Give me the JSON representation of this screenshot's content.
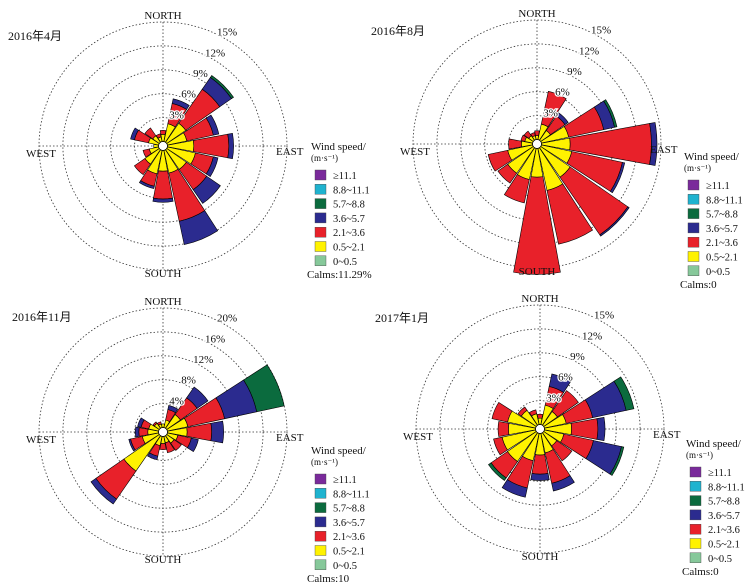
{
  "chart_data": [
    {
      "type": "windrose",
      "title": "2016年4月",
      "directions": [
        "N",
        "NNE",
        "NE",
        "ENE",
        "E",
        "ESE",
        "SE",
        "SSE",
        "S",
        "SSW",
        "SW",
        "WSW",
        "W",
        "WNW",
        "NW",
        "NNW"
      ],
      "compass_labels": {
        "north": "NORTH",
        "south": "SOUTH",
        "east": "EAST",
        "west": "WEST"
      },
      "rings": [
        3,
        6,
        9,
        12,
        15
      ],
      "ring_labels": [
        "3%",
        "6%",
        "9%",
        "12%",
        "15%"
      ],
      "max": 15,
      "legend_title": "Wind speed/",
      "legend_unit": "(m·s⁻¹)",
      "calms": "Calms:11.29%",
      "bins": [
        {
          "label": "≥11.1",
          "color": "#7a2a9b"
        },
        {
          "label": "8.8~11.1",
          "color": "#1fb3cf"
        },
        {
          "label": "5.7~8.8",
          "color": "#0b6b3e"
        },
        {
          "label": "3.6~5.7",
          "color": "#2b2b8f"
        },
        {
          "label": "2.1~3.6",
          "color": "#e8212a"
        },
        {
          "label": "0.5~2.1",
          "color": "#fff200"
        },
        {
          "label": "0~0.5",
          "color": "#86c89a"
        }
      ],
      "freq": [
        [
          0,
          0,
          0,
          0,
          0.5,
          0.9,
          0
        ],
        [
          0,
          0,
          0,
          0.6,
          2.6,
          2.3,
          0
        ],
        [
          0,
          0,
          0.3,
          1.8,
          5.2,
          2.9,
          0
        ],
        [
          0,
          0,
          0,
          0.7,
          3.4,
          2.5,
          0
        ],
        [
          0,
          0,
          0,
          0.6,
          4.4,
          3.3,
          0
        ],
        [
          0,
          0,
          0,
          0.6,
          2.3,
          3.6,
          0
        ],
        [
          0,
          0,
          0,
          2.1,
          3.1,
          3.0,
          0
        ],
        [
          0,
          0,
          0,
          3.0,
          6.2,
          2.9,
          0
        ],
        [
          0,
          0,
          0,
          0.4,
          3.5,
          2.6,
          0
        ],
        [
          0,
          0,
          0,
          0.3,
          1.6,
          3.0,
          0
        ],
        [
          0,
          0,
          0,
          0,
          1.6,
          2.2,
          0
        ],
        [
          0,
          0,
          0,
          0,
          0.8,
          1.2,
          0
        ],
        [
          0,
          0,
          0,
          0,
          0,
          0.6,
          0
        ],
        [
          0,
          0,
          0,
          0.5,
          1.8,
          1.3,
          0
        ],
        [
          0,
          0,
          0,
          0,
          1.2,
          1.0,
          0
        ],
        [
          0,
          0,
          0,
          0,
          0.4,
          0.6,
          0
        ]
      ]
    },
    {
      "type": "windrose",
      "title": "2016年8月",
      "directions": [
        "N",
        "NNE",
        "NE",
        "ENE",
        "E",
        "ESE",
        "SE",
        "SSE",
        "S",
        "SSW",
        "SW",
        "WSW",
        "W",
        "WNW",
        "NW",
        "NNW"
      ],
      "compass_labels": {
        "north": "NORTH",
        "south": "SOUTH",
        "east": "EAST",
        "west": "WEST"
      },
      "rings": [
        3,
        6,
        9,
        12,
        15
      ],
      "ring_labels": [
        "3%",
        "6%",
        "9%",
        "12%",
        "15%"
      ],
      "max": 15,
      "legend_title": "Wind speed/",
      "legend_unit": "(m·s⁻¹)",
      "calms": "Calms:0",
      "bins": [
        {
          "label": "≥11.1",
          "color": "#7a2a9b"
        },
        {
          "label": "8.8~11.1",
          "color": "#1fb3cf"
        },
        {
          "label": "5.7~8.8",
          "color": "#0b6b3e"
        },
        {
          "label": "3.6~5.7",
          "color": "#2b2b8f"
        },
        {
          "label": "2.1~3.6",
          "color": "#e8212a"
        },
        {
          "label": "0.5~2.1",
          "color": "#fff200"
        },
        {
          "label": "0~0.5",
          "color": "#86c89a"
        }
      ],
      "freq": [
        [
          0,
          0,
          0,
          0,
          0.6,
          0.5,
          0
        ],
        [
          0,
          0,
          0,
          0,
          4.2,
          2.0,
          0
        ],
        [
          0,
          0,
          0,
          0.5,
          2.2,
          1.5,
          0
        ],
        [
          0,
          0,
          0.3,
          1.4,
          4.5,
          3.5,
          0
        ],
        [
          0,
          0,
          0,
          0.7,
          10.2,
          3.6,
          0
        ],
        [
          0,
          0,
          0,
          0.3,
          6.5,
          3.9,
          0
        ],
        [
          0,
          0,
          0,
          0.2,
          8.8,
          4.5,
          0
        ],
        [
          0,
          0,
          0,
          0,
          6.9,
          5.4,
          0
        ],
        [
          0,
          0,
          0,
          0,
          12.2,
          3.6,
          0
        ],
        [
          0,
          0,
          0,
          0,
          3.0,
          4.0,
          0
        ],
        [
          0,
          0,
          0,
          0,
          1.5,
          3.9,
          0
        ],
        [
          0,
          0,
          0,
          0,
          2.5,
          3.2,
          0
        ],
        [
          0,
          0,
          0,
          0,
          1.6,
          1.4,
          0
        ],
        [
          0,
          0,
          0,
          0,
          0.5,
          1.0,
          0
        ],
        [
          0,
          0,
          0,
          0,
          0.7,
          0.7,
          0
        ],
        [
          0,
          0,
          0,
          0,
          0.4,
          0.5,
          0
        ]
      ]
    },
    {
      "type": "windrose",
      "title": "2016年11月",
      "directions": [
        "N",
        "NNE",
        "NE",
        "ENE",
        "E",
        "ESE",
        "SE",
        "SSE",
        "S",
        "SSW",
        "SW",
        "WSW",
        "W",
        "WNW",
        "NW",
        "NNW"
      ],
      "compass_labels": {
        "north": "NORTH",
        "south": "SOUTH",
        "east": "EAST",
        "west": "WEST"
      },
      "rings": [
        4,
        8,
        12,
        16,
        20
      ],
      "ring_labels": [
        "4%",
        "8%",
        "12%",
        "16%",
        "20%"
      ],
      "max": 20,
      "legend_title": "Wind speed/",
      "legend_unit": "(m·s⁻¹)",
      "calms": "Calms:10",
      "bins": [
        {
          "label": "≥11.1",
          "color": "#7a2a9b"
        },
        {
          "label": "8.8~11.1",
          "color": "#1fb3cf"
        },
        {
          "label": "5.7~8.8",
          "color": "#0b6b3e"
        },
        {
          "label": "3.6~5.7",
          "color": "#2b2b8f"
        },
        {
          "label": "2.1~3.6",
          "color": "#e8212a"
        },
        {
          "label": "0.5~2.1",
          "color": "#fff200"
        },
        {
          "label": "0~0.5",
          "color": "#86c89a"
        }
      ],
      "freq": [
        [
          0,
          0,
          0,
          0,
          0,
          0.6,
          0
        ],
        [
          0,
          0,
          0,
          0.7,
          1.8,
          1.3,
          0
        ],
        [
          0,
          0,
          0,
          2.2,
          3.4,
          2.8,
          0
        ],
        [
          0,
          0,
          4.7,
          5.5,
          6.3,
          3.5,
          0
        ],
        [
          0,
          0,
          0,
          2.0,
          4.1,
          3.3,
          0
        ],
        [
          0,
          0,
          0,
          1.2,
          2.3,
          1.8,
          0
        ],
        [
          0,
          0,
          0,
          0,
          1.5,
          1.5,
          0
        ],
        [
          0,
          0,
          0,
          0,
          1.7,
          1.1,
          0
        ],
        [
          0,
          0,
          0,
          0,
          1.0,
          1.2,
          0
        ],
        [
          0,
          0,
          0,
          0.6,
          1.8,
          1.6,
          0
        ],
        [
          0,
          0,
          0,
          1.0,
          5.7,
          7.2,
          0
        ],
        [
          0,
          0,
          0,
          0.3,
          2.0,
          2.8,
          0
        ],
        [
          0,
          0,
          0,
          0.6,
          1.5,
          1.8,
          0
        ],
        [
          0,
          0,
          0,
          0.6,
          1.3,
          1.7,
          0
        ],
        [
          0,
          0,
          0,
          0,
          0.3,
          1.0,
          0
        ],
        [
          0,
          0,
          0,
          0,
          0.4,
          0.6,
          0
        ]
      ]
    },
    {
      "type": "windrose",
      "title": "2017年1月",
      "directions": [
        "N",
        "NNE",
        "NE",
        "ENE",
        "E",
        "ESE",
        "SE",
        "SSE",
        "S",
        "SSW",
        "SW",
        "WSW",
        "W",
        "WNW",
        "NW",
        "NNW"
      ],
      "compass_labels": {
        "north": "NORTH",
        "south": "SOUTH",
        "east": "EAST",
        "west": "WEST"
      },
      "rings": [
        3,
        6,
        9,
        12,
        15
      ],
      "ring_labels": [
        "3%",
        "6%",
        "9%",
        "12%",
        "15%"
      ],
      "max": 15,
      "legend_title": "Wind speed/",
      "legend_unit": "(m·s⁻¹)",
      "calms": "Calms:0",
      "bins": [
        {
          "label": "≥11.1",
          "color": "#7a2a9b"
        },
        {
          "label": "8.8~11.1",
          "color": "#1fb3cf"
        },
        {
          "label": "5.7~8.8",
          "color": "#0b6b3e"
        },
        {
          "label": "3.6~5.7",
          "color": "#2b2b8f"
        },
        {
          "label": "2.1~3.6",
          "color": "#e8212a"
        },
        {
          "label": "0.5~2.1",
          "color": "#fff200"
        },
        {
          "label": "0~0.5",
          "color": "#86c89a"
        }
      ],
      "freq": [
        [
          0,
          0,
          0,
          0,
          0.5,
          0.8,
          0
        ],
        [
          0,
          0,
          0,
          1.6,
          2.4,
          2.5,
          0
        ],
        [
          0,
          0,
          0,
          0,
          3.2,
          2.1,
          0
        ],
        [
          0,
          0,
          1.0,
          4.3,
          3.4,
          2.8,
          0
        ],
        [
          0,
          0,
          0,
          0.9,
          3.3,
          3.4,
          0
        ],
        [
          0,
          0,
          0.3,
          3.6,
          3.8,
          2.5,
          0
        ],
        [
          0,
          0,
          0,
          0,
          2.3,
          2.0,
          0
        ],
        [
          0,
          0,
          0,
          1.0,
          3.9,
          2.5,
          0
        ],
        [
          0,
          0,
          0,
          0.8,
          2.4,
          2.7,
          0
        ],
        [
          0,
          0,
          0,
          1.2,
          3.5,
          3.5,
          0
        ],
        [
          0,
          0,
          0.4,
          0,
          2.5,
          4.4,
          0
        ],
        [
          0,
          0,
          0,
          0,
          1.1,
          4.3,
          0
        ],
        [
          0,
          0,
          0,
          0,
          1.3,
          3.4,
          0
        ],
        [
          0,
          0,
          0,
          0,
          2.0,
          3.6,
          0
        ],
        [
          0,
          0,
          0,
          0,
          0.5,
          2.3,
          0
        ],
        [
          0,
          0,
          0,
          0,
          0.5,
          1.4,
          0
        ]
      ]
    }
  ]
}
